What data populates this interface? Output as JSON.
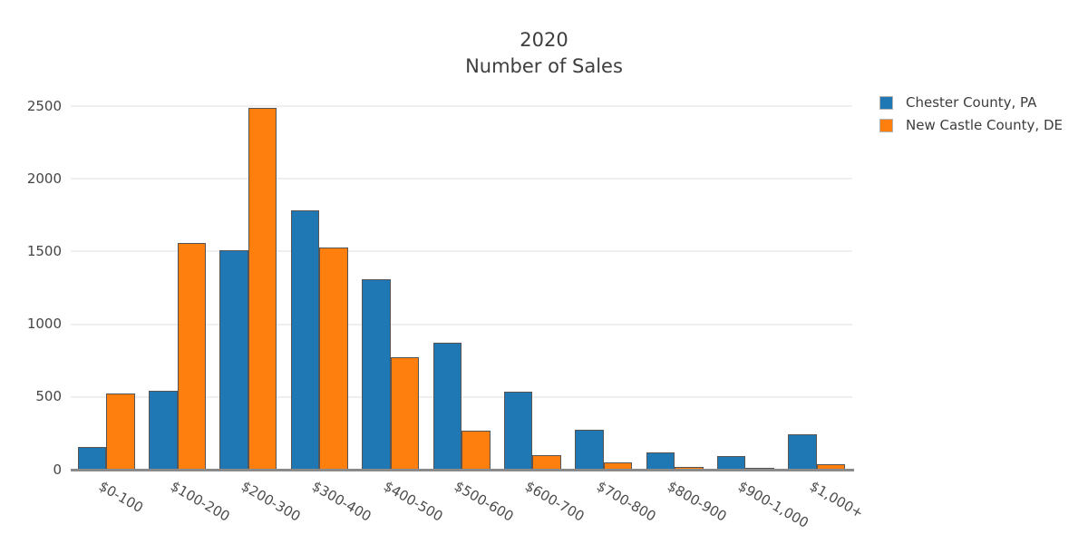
{
  "figure": {
    "background": "#ffffff",
    "axis_line_color": "#8a8a8a",
    "gridline_color": "#efefef",
    "bar_edge_color": "#555555",
    "text_color": "#3e3e3e"
  },
  "chart_data": {
    "type": "bar",
    "title": "2020",
    "subtitle": "Number of Sales",
    "categories": [
      "$0-100",
      "$100-200",
      "$200-300",
      "$300-400",
      "$400-500",
      "$500-600",
      "$600-700",
      "$700-800",
      "$800-900",
      "$900-1,000",
      "$1,000+"
    ],
    "series": [
      {
        "name": "Chester County, PA",
        "color": "#1f77b4",
        "values": [
          155,
          545,
          1510,
          1780,
          1310,
          875,
          535,
          275,
          120,
          95,
          245
        ]
      },
      {
        "name": "New Castle County, DE",
        "color": "#ff7f0e",
        "values": [
          525,
          1560,
          2490,
          1525,
          770,
          265,
          100,
          50,
          20,
          10,
          40
        ]
      }
    ],
    "xlabel": "",
    "ylabel": "",
    "ylim": [
      0,
      2500
    ],
    "yticks": [
      0,
      500,
      1000,
      1500,
      2000,
      2500
    ],
    "grid": "horizontal",
    "legend_position": "top-right",
    "x_tick_rotation_deg": -30
  }
}
